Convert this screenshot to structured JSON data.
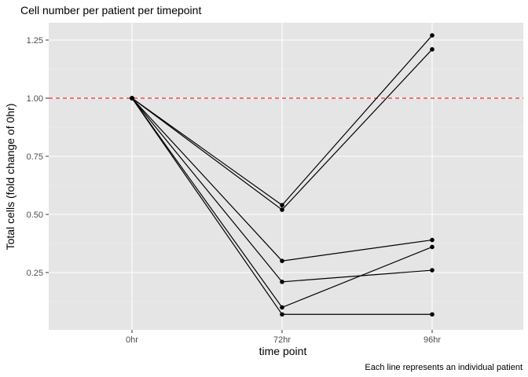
{
  "chart_data": {
    "type": "line",
    "title": "Cell number per patient per timepoint",
    "xlabel": "time point",
    "ylabel": "Total cells (fold change of 0hr)",
    "caption": "Each line represents an individual patient",
    "categories": [
      "0hr",
      "72hr",
      "96hr"
    ],
    "yticks": [
      "0.25",
      "0.50",
      "0.75",
      "1.00",
      "1.25"
    ],
    "ylim": [
      0.0,
      1.32
    ],
    "reference_line": {
      "y": 1.0,
      "style": "dashed",
      "color": "#ff0000"
    },
    "series": [
      {
        "values": [
          1.0,
          0.54,
          1.27
        ]
      },
      {
        "values": [
          1.0,
          0.52,
          1.21
        ]
      },
      {
        "values": [
          1.0,
          0.3,
          0.39
        ]
      },
      {
        "values": [
          1.0,
          0.21,
          0.26
        ]
      },
      {
        "values": [
          1.0,
          0.1,
          0.36
        ]
      },
      {
        "values": [
          1.0,
          0.07,
          0.07
        ]
      }
    ],
    "grid": true,
    "panel_background": "#e5e5e5",
    "line_color": "#000000"
  }
}
